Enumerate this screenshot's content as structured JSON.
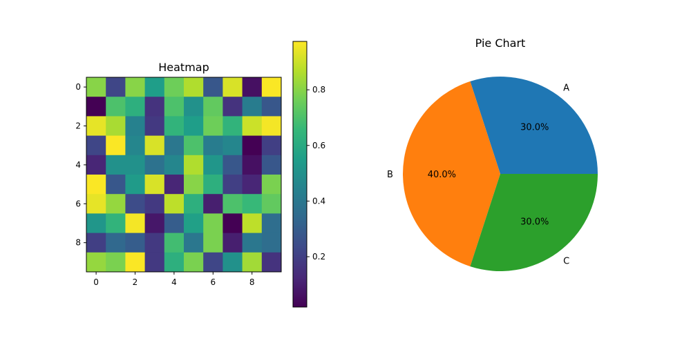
{
  "chart_data": [
    {
      "type": "heatmap",
      "title": "Heatmap",
      "colormap": "viridis",
      "x_ticks": [
        0,
        2,
        4,
        6,
        8
      ],
      "y_ticks": [
        0,
        2,
        4,
        6,
        8
      ],
      "colorbar_ticks": [
        0.2,
        0.4,
        0.6,
        0.8
      ],
      "vmin": 0.019,
      "vmax": 0.974,
      "values": [
        [
          0.8,
          0.22,
          0.8,
          0.55,
          0.76,
          0.86,
          0.28,
          0.92,
          0.06,
          0.97
        ],
        [
          0.02,
          0.7,
          0.62,
          0.16,
          0.7,
          0.5,
          0.74,
          0.16,
          0.42,
          0.28
        ],
        [
          0.94,
          0.85,
          0.44,
          0.18,
          0.64,
          0.55,
          0.76,
          0.64,
          0.9,
          0.96
        ],
        [
          0.22,
          0.97,
          0.46,
          0.92,
          0.4,
          0.7,
          0.42,
          0.46,
          0.02,
          0.2
        ],
        [
          0.12,
          0.5,
          0.5,
          0.38,
          0.46,
          0.86,
          0.52,
          0.28,
          0.06,
          0.28
        ],
        [
          0.97,
          0.28,
          0.54,
          0.92,
          0.12,
          0.8,
          0.62,
          0.2,
          0.12,
          0.78
        ],
        [
          0.94,
          0.82,
          0.24,
          0.18,
          0.88,
          0.62,
          0.1,
          0.7,
          0.66,
          0.74
        ],
        [
          0.52,
          0.64,
          0.96,
          0.08,
          0.3,
          0.56,
          0.78,
          0.02,
          0.88,
          0.36
        ],
        [
          0.2,
          0.34,
          0.3,
          0.18,
          0.68,
          0.4,
          0.78,
          0.1,
          0.4,
          0.36
        ],
        [
          0.82,
          0.78,
          0.97,
          0.18,
          0.62,
          0.78,
          0.22,
          0.5,
          0.84,
          0.16
        ]
      ]
    },
    {
      "type": "pie",
      "title": "Pie Chart",
      "labels": [
        "A",
        "B",
        "C"
      ],
      "values": [
        30,
        40,
        30
      ],
      "pct_labels": [
        "30.0%",
        "40.0%",
        "30.0%"
      ],
      "colors": [
        "#1f77b4",
        "#ff7f0e",
        "#2ca02c"
      ]
    }
  ]
}
